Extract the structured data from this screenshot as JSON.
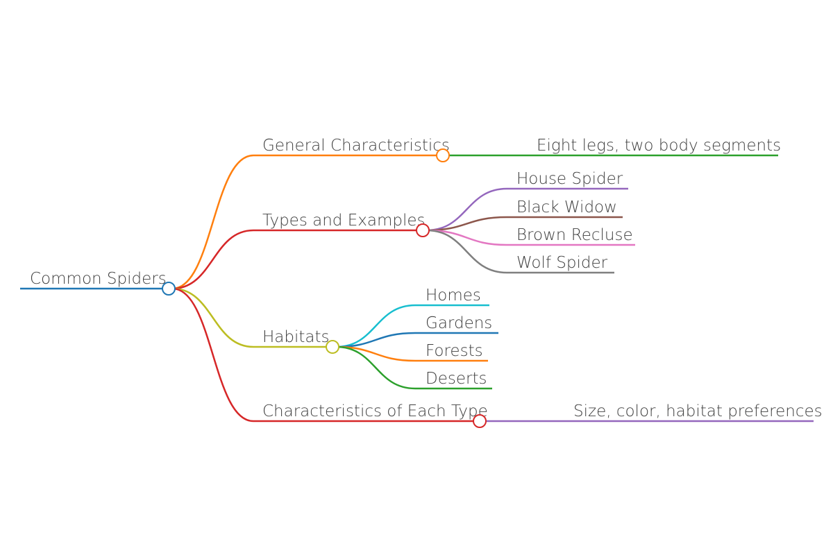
{
  "mindmap": {
    "root": {
      "label": "Common Spiders",
      "color": "#1f77b4"
    },
    "branches": [
      {
        "label": "General Characteristics",
        "color": "#ff7f0e",
        "children": [
          {
            "label": "Eight legs, two body segments",
            "color": "#2ca02c"
          }
        ]
      },
      {
        "label": "Types and Examples",
        "color": "#d62728",
        "children": [
          {
            "label": "House Spider",
            "color": "#9467bd"
          },
          {
            "label": "Black Widow",
            "color": "#8c564b"
          },
          {
            "label": "Brown Recluse",
            "color": "#e377c2"
          },
          {
            "label": "Wolf Spider",
            "color": "#7f7f7f"
          }
        ]
      },
      {
        "label": "Habitats",
        "color": "#bcbd22",
        "children": [
          {
            "label": "Homes",
            "color": "#17becf"
          },
          {
            "label": "Gardens",
            "color": "#1f77b4"
          },
          {
            "label": "Forests",
            "color": "#ff7f0e"
          },
          {
            "label": "Deserts",
            "color": "#2ca02c"
          }
        ]
      },
      {
        "label": "Characteristics of Each Type",
        "color": "#d62728",
        "children": [
          {
            "label": "Size, color, habitat preferences",
            "color": "#9467bd"
          }
        ]
      }
    ]
  }
}
